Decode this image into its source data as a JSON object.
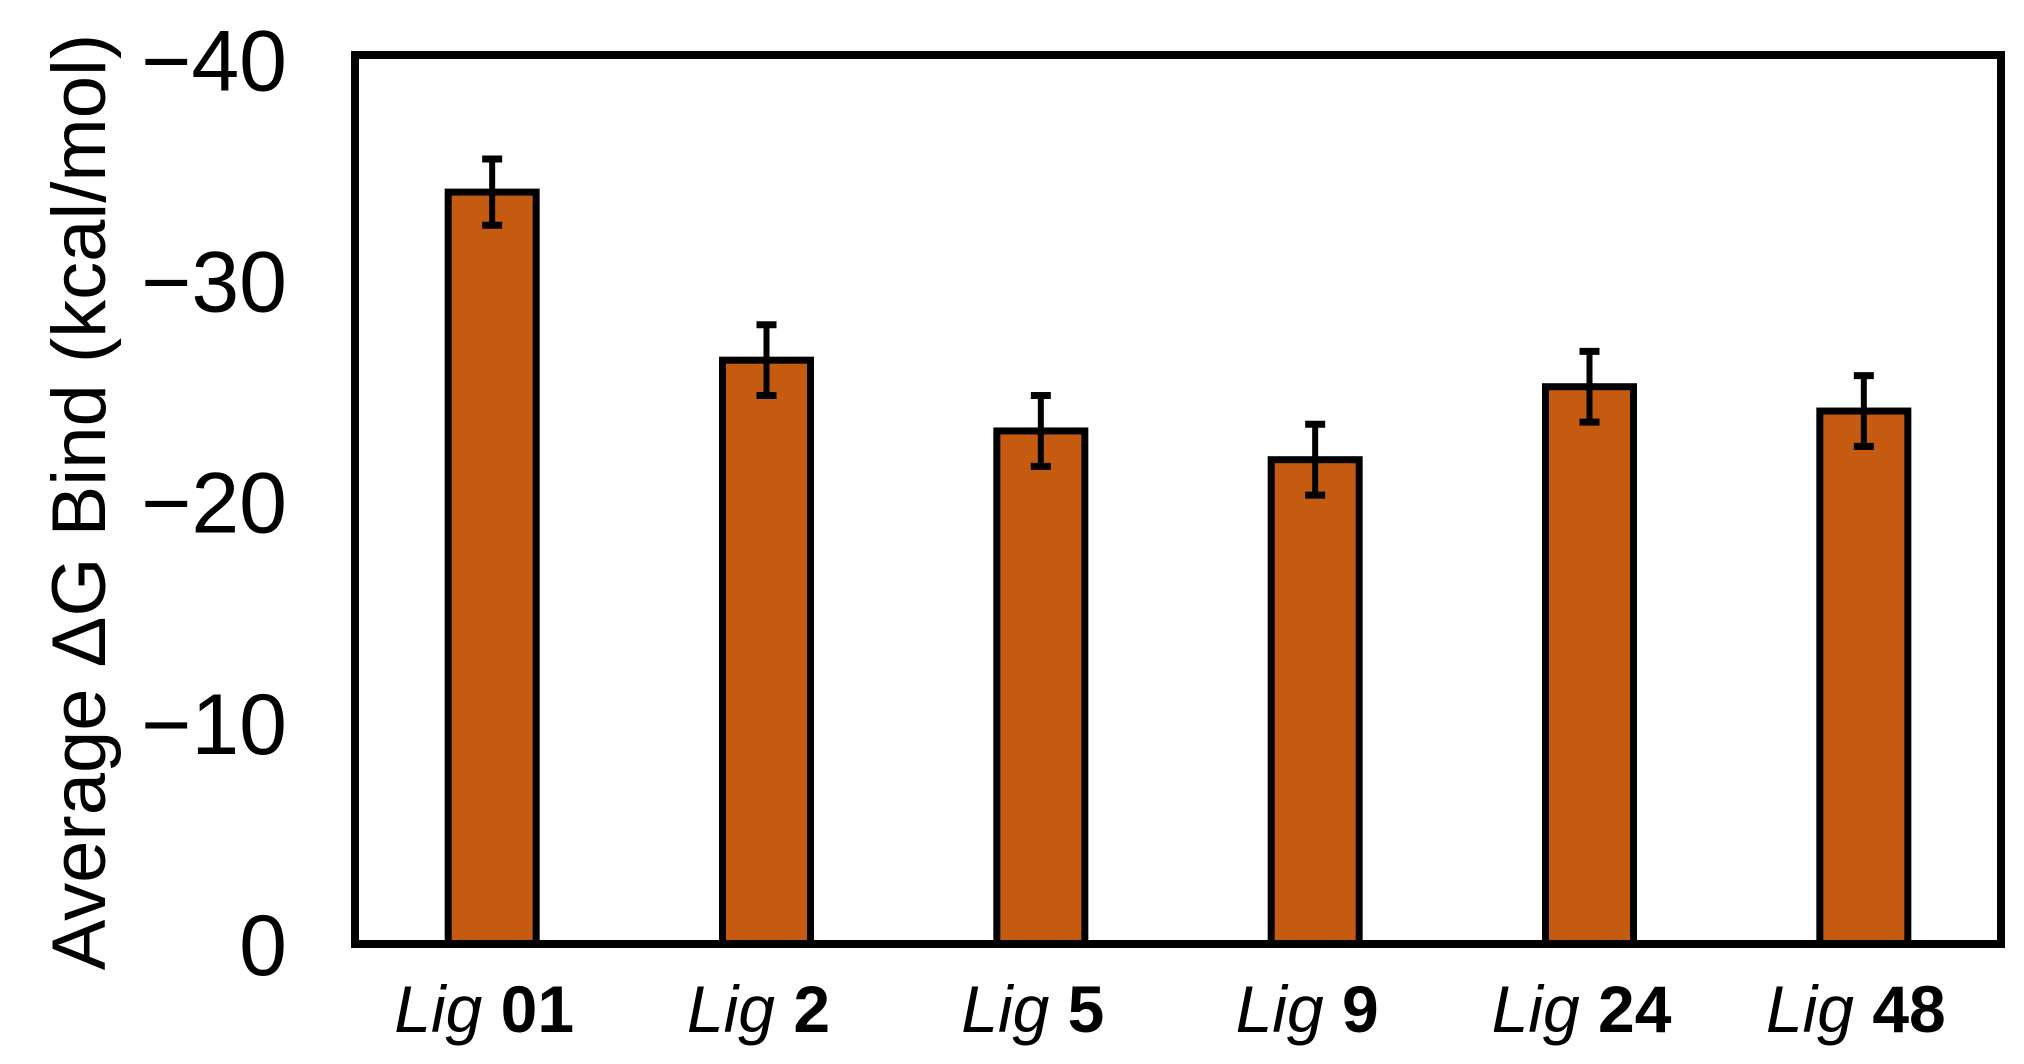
{
  "chart_data": {
    "type": "bar",
    "title": "",
    "xlabel": "",
    "ylabel": "Average ΔG Bind (kcal/mol)",
    "ylim": [
      0,
      -40
    ],
    "y_axis_inverted": true,
    "yticks": [
      0,
      -10,
      -20,
      -30,
      -40
    ],
    "ytick_labels": [
      "0",
      "−10",
      "−20",
      "−30",
      "−40"
    ],
    "grid": false,
    "legend": null,
    "categories": [
      "Lig 01",
      "Lig 2",
      "Lig 5",
      "Lig 9",
      "Lig 24",
      "Lig 48"
    ],
    "category_parts": [
      {
        "prefix": "Lig",
        "id": "01"
      },
      {
        "prefix": "Lig",
        "id": "2"
      },
      {
        "prefix": "Lig",
        "id": "5"
      },
      {
        "prefix": "Lig",
        "id": "9"
      },
      {
        "prefix": "Lig",
        "id": "24"
      },
      {
        "prefix": "Lig",
        "id": "48"
      }
    ],
    "series": [
      {
        "name": "Average ΔG Bind",
        "values": [
          -34.0,
          -26.4,
          -23.2,
          -21.9,
          -25.2,
          -24.1
        ],
        "errors": [
          1.5,
          1.6,
          1.6,
          1.6,
          1.6,
          1.6
        ],
        "color": "#C55A11"
      }
    ]
  },
  "colors": {
    "bar_fill": "#C55A11",
    "bar_edge": "#000000",
    "axis": "#000000",
    "background": "#FFFFFF"
  }
}
